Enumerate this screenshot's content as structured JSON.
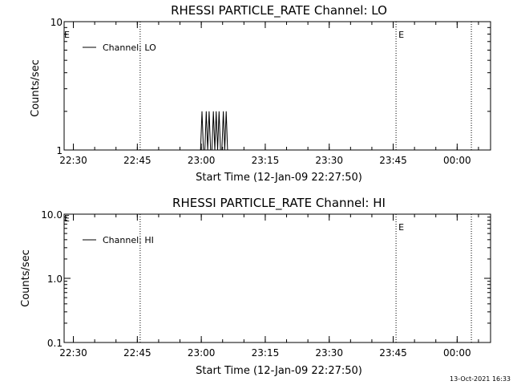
{
  "footer": {
    "timestamp": "13-Oct-2021 16:33"
  },
  "chart_data": [
    {
      "type": "line",
      "title": "RHESSI PARTICLE_RATE Channel: LO",
      "xlabel": "Start Time (12-Jan-09 22:27:50)",
      "ylabel": "Counts/sec",
      "y_scale": "log",
      "ylim": [
        1,
        10
      ],
      "y_ticks": [
        1,
        10
      ],
      "y_tick_labels": [
        "1",
        "10"
      ],
      "x_tick_labels": [
        "22:30",
        "22:45",
        "23:00",
        "23:15",
        "23:30",
        "23:45",
        "00:00"
      ],
      "x_range": [
        "22:27:50",
        "00:07:50"
      ],
      "legend": {
        "label": "Channel: LO",
        "position": "top-left"
      },
      "event_markers": [
        {
          "time": "22:45:40",
          "label": ""
        },
        {
          "time": "23:45:40",
          "label": "E"
        },
        {
          "time": "00:03:20",
          "label": ""
        }
      ],
      "edge_flag": "E",
      "series": [
        {
          "name": "Channel: LO",
          "x": [
            "22:59:50",
            "23:00:10",
            "23:00:30",
            "23:00:50",
            "23:01:10",
            "23:01:30",
            "23:01:50",
            "23:02:10",
            "23:02:30",
            "23:02:50",
            "23:03:10",
            "23:03:30",
            "23:03:50",
            "23:04:10",
            "23:04:30",
            "23:04:50",
            "23:05:10",
            "23:05:30",
            "23:05:50",
            "23:06:10",
            "23:06:30"
          ],
          "values": [
            1,
            2,
            1,
            1,
            2,
            1,
            2,
            1,
            1,
            2,
            1,
            2,
            1,
            2,
            1,
            1,
            2,
            1,
            2,
            1,
            1
          ]
        }
      ]
    },
    {
      "type": "line",
      "title": "RHESSI PARTICLE_RATE Channel: HI",
      "xlabel": "Start Time (12-Jan-09 22:27:50)",
      "ylabel": "Counts/sec",
      "y_scale": "log",
      "ylim": [
        0.1,
        10
      ],
      "y_ticks": [
        0.1,
        1,
        10
      ],
      "y_tick_labels": [
        "0.1",
        "1.0",
        "10.0"
      ],
      "x_tick_labels": [
        "22:30",
        "22:45",
        "23:00",
        "23:15",
        "23:30",
        "23:45",
        "00:00"
      ],
      "x_range": [
        "22:27:50",
        "00:07:50"
      ],
      "legend": {
        "label": "Channel: HI",
        "position": "top-left"
      },
      "event_markers": [
        {
          "time": "22:45:40",
          "label": ""
        },
        {
          "time": "23:45:40",
          "label": "E"
        },
        {
          "time": "00:03:20",
          "label": ""
        }
      ],
      "edge_flag": "E",
      "series": [
        {
          "name": "Channel: HI",
          "x": [],
          "values": []
        }
      ]
    }
  ]
}
